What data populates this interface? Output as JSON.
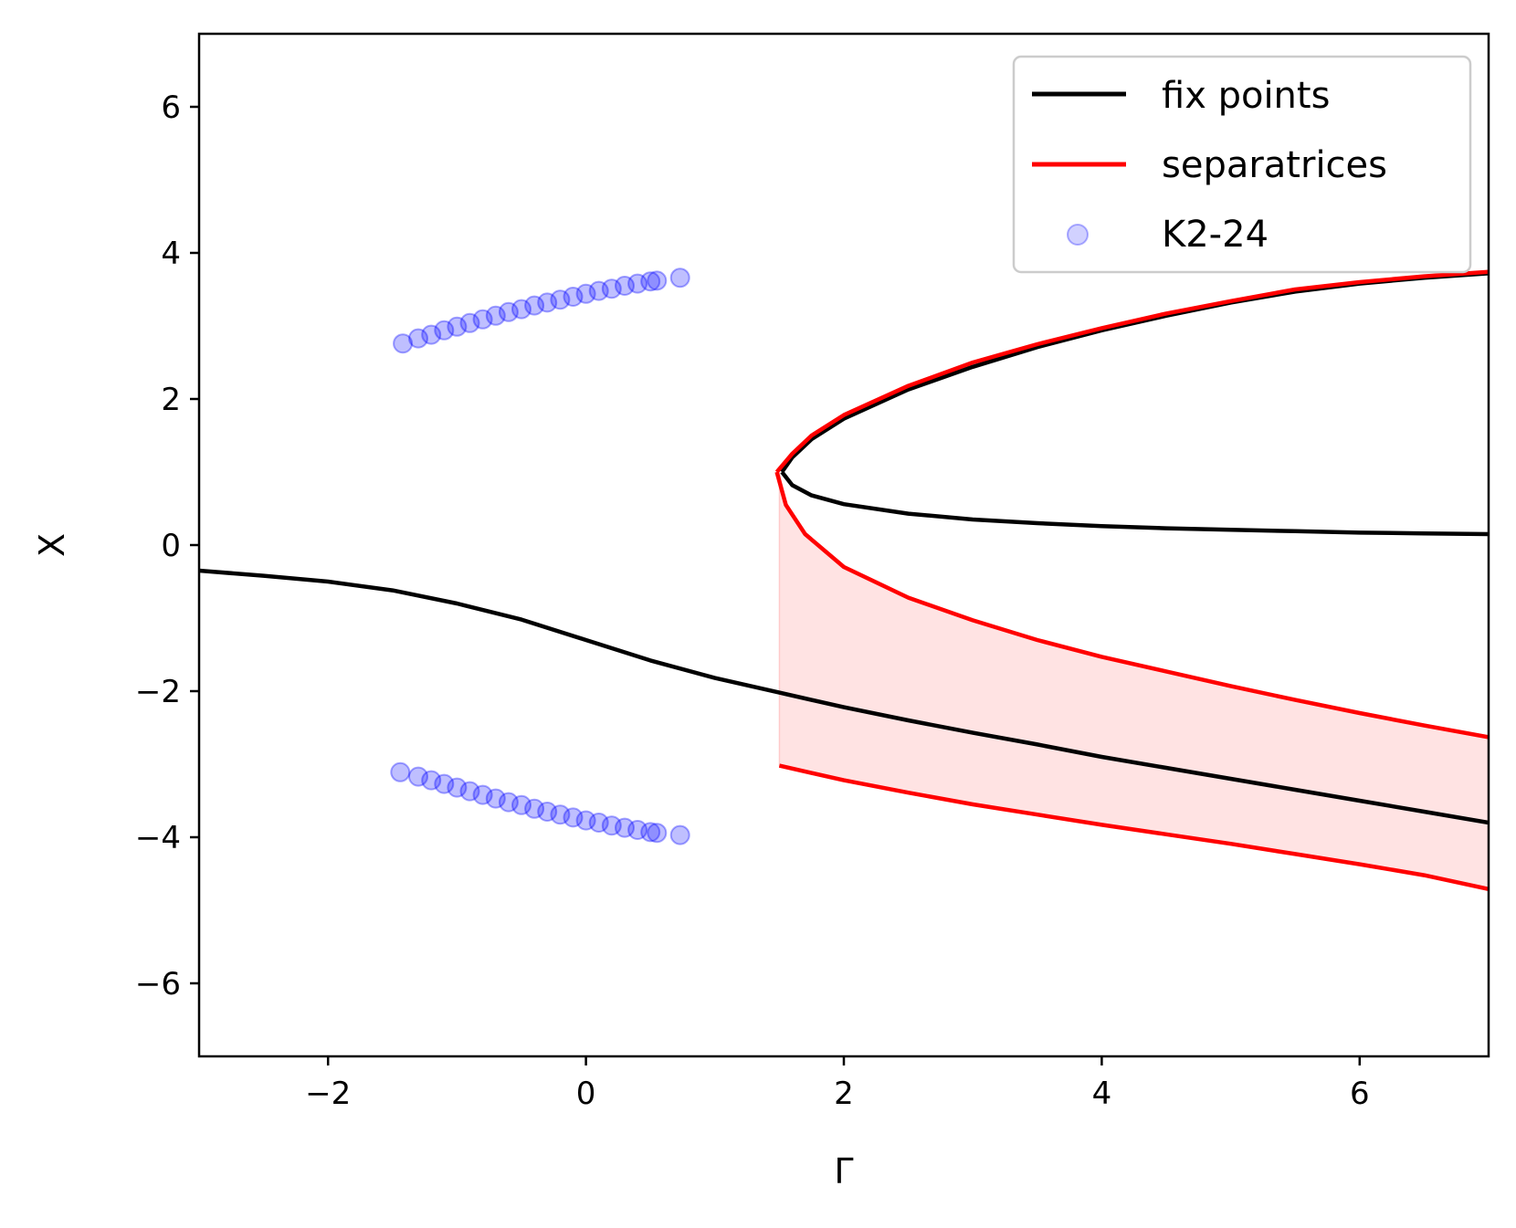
{
  "chart_data": {
    "type": "line",
    "xlabel": "Γ",
    "ylabel": "X",
    "xlim": [
      -3,
      7
    ],
    "ylim": [
      -7,
      7
    ],
    "xticks": [
      -2,
      0,
      2,
      4,
      6
    ],
    "yticks": [
      -6,
      -4,
      -2,
      0,
      2,
      4,
      6
    ],
    "xtick_labels": [
      "−2",
      "0",
      "2",
      "4",
      "6"
    ],
    "ytick_labels": [
      "−6",
      "−4",
      "−2",
      "0",
      "2",
      "4",
      "6"
    ],
    "grid": false,
    "legend_position": "top-right",
    "series": [
      {
        "name": "fix points",
        "kind": "line",
        "color": "#000000",
        "segments": [
          [
            [
              -3.0,
              -0.35
            ],
            [
              -2.5,
              -0.42
            ],
            [
              -2.0,
              -0.5
            ],
            [
              -1.5,
              -0.62
            ],
            [
              -1.0,
              -0.8
            ],
            [
              -0.5,
              -1.02
            ],
            [
              0.0,
              -1.3
            ],
            [
              0.5,
              -1.58
            ],
            [
              1.0,
              -1.82
            ],
            [
              1.5,
              -2.02
            ],
            [
              2.0,
              -2.22
            ],
            [
              2.5,
              -2.4
            ],
            [
              3.0,
              -2.57
            ],
            [
              3.5,
              -2.73
            ],
            [
              4.0,
              -2.9
            ],
            [
              4.5,
              -3.05
            ],
            [
              5.0,
              -3.2
            ],
            [
              5.5,
              -3.35
            ],
            [
              6.0,
              -3.5
            ],
            [
              6.5,
              -3.65
            ],
            [
              7.0,
              -3.8
            ]
          ],
          [
            [
              1.52,
              1.0
            ],
            [
              1.6,
              0.82
            ],
            [
              1.75,
              0.68
            ],
            [
              2.0,
              0.56
            ],
            [
              2.5,
              0.43
            ],
            [
              3.0,
              0.35
            ],
            [
              3.5,
              0.3
            ],
            [
              4.0,
              0.26
            ],
            [
              4.5,
              0.23
            ],
            [
              5.0,
              0.21
            ],
            [
              5.5,
              0.19
            ],
            [
              6.0,
              0.17
            ],
            [
              6.5,
              0.16
            ],
            [
              7.0,
              0.15
            ]
          ],
          [
            [
              1.52,
              1.0
            ],
            [
              1.6,
              1.2
            ],
            [
              1.75,
              1.45
            ],
            [
              2.0,
              1.73
            ],
            [
              2.5,
              2.13
            ],
            [
              3.0,
              2.44
            ],
            [
              3.5,
              2.71
            ],
            [
              4.0,
              2.94
            ],
            [
              4.5,
              3.14
            ],
            [
              5.0,
              3.32
            ],
            [
              5.5,
              3.47
            ],
            [
              6.0,
              3.58
            ],
            [
              6.5,
              3.66
            ],
            [
              7.0,
              3.72
            ]
          ]
        ]
      },
      {
        "name": "separatrices",
        "kind": "line",
        "color": "#ff0000",
        "segments": [
          [
            [
              1.48,
              1.0
            ],
            [
              1.6,
              1.25
            ],
            [
              1.75,
              1.5
            ],
            [
              2.0,
              1.78
            ],
            [
              2.5,
              2.18
            ],
            [
              3.0,
              2.5
            ],
            [
              3.5,
              2.75
            ],
            [
              4.0,
              2.97
            ],
            [
              4.5,
              3.17
            ],
            [
              5.0,
              3.34
            ],
            [
              5.5,
              3.5
            ],
            [
              6.0,
              3.6
            ],
            [
              6.5,
              3.68
            ],
            [
              7.0,
              3.74
            ]
          ],
          [
            [
              1.48,
              1.0
            ],
            [
              1.55,
              0.55
            ],
            [
              1.7,
              0.15
            ],
            [
              2.0,
              -0.3
            ],
            [
              2.5,
              -0.72
            ],
            [
              3.0,
              -1.03
            ],
            [
              3.5,
              -1.3
            ],
            [
              4.0,
              -1.53
            ],
            [
              4.5,
              -1.73
            ],
            [
              5.0,
              -1.93
            ],
            [
              5.5,
              -2.12
            ],
            [
              6.0,
              -2.3
            ],
            [
              6.5,
              -2.47
            ],
            [
              7.0,
              -2.63
            ]
          ],
          [
            [
              1.5,
              -3.02
            ],
            [
              2.0,
              -3.22
            ],
            [
              2.5,
              -3.39
            ],
            [
              3.0,
              -3.55
            ],
            [
              3.5,
              -3.69
            ],
            [
              4.0,
              -3.83
            ],
            [
              4.5,
              -3.96
            ],
            [
              5.0,
              -4.09
            ],
            [
              5.5,
              -4.23
            ],
            [
              6.0,
              -4.37
            ],
            [
              6.5,
              -4.52
            ],
            [
              7.0,
              -4.71
            ]
          ]
        ]
      },
      {
        "name": "K2-24",
        "kind": "scatter",
        "color": "#0000ff",
        "points": [
          [
            -1.42,
            2.76
          ],
          [
            -1.3,
            2.83
          ],
          [
            -1.2,
            2.88
          ],
          [
            -1.1,
            2.94
          ],
          [
            -1.0,
            2.99
          ],
          [
            -0.9,
            3.04
          ],
          [
            -0.8,
            3.09
          ],
          [
            -0.7,
            3.14
          ],
          [
            -0.6,
            3.19
          ],
          [
            -0.5,
            3.23
          ],
          [
            -0.4,
            3.28
          ],
          [
            -0.3,
            3.32
          ],
          [
            -0.2,
            3.36
          ],
          [
            -0.1,
            3.4
          ],
          [
            0.0,
            3.44
          ],
          [
            0.1,
            3.48
          ],
          [
            0.2,
            3.51
          ],
          [
            0.3,
            3.55
          ],
          [
            0.4,
            3.58
          ],
          [
            0.5,
            3.61
          ],
          [
            0.55,
            3.62
          ],
          [
            0.73,
            3.66
          ],
          [
            -1.44,
            -3.11
          ],
          [
            -1.3,
            -3.17
          ],
          [
            -1.2,
            -3.22
          ],
          [
            -1.1,
            -3.27
          ],
          [
            -1.0,
            -3.32
          ],
          [
            -0.9,
            -3.37
          ],
          [
            -0.8,
            -3.42
          ],
          [
            -0.7,
            -3.47
          ],
          [
            -0.6,
            -3.52
          ],
          [
            -0.5,
            -3.56
          ],
          [
            -0.4,
            -3.61
          ],
          [
            -0.3,
            -3.65
          ],
          [
            -0.2,
            -3.69
          ],
          [
            -0.1,
            -3.73
          ],
          [
            0.0,
            -3.77
          ],
          [
            0.1,
            -3.8
          ],
          [
            0.2,
            -3.84
          ],
          [
            0.3,
            -3.87
          ],
          [
            0.4,
            -3.9
          ],
          [
            0.5,
            -3.93
          ],
          [
            0.55,
            -3.94
          ],
          [
            0.73,
            -3.97
          ]
        ]
      }
    ],
    "shaded_region": {
      "color": "#ff0000",
      "x_start": 1.5,
      "x_end": 7.0,
      "upper": [
        [
          1.5,
          1.0
        ],
        [
          1.55,
          0.55
        ],
        [
          1.7,
          0.15
        ],
        [
          2.0,
          -0.3
        ],
        [
          2.5,
          -0.72
        ],
        [
          3.0,
          -1.03
        ],
        [
          3.5,
          -1.3
        ],
        [
          4.0,
          -1.53
        ],
        [
          4.5,
          -1.73
        ],
        [
          5.0,
          -1.93
        ],
        [
          5.5,
          -2.12
        ],
        [
          6.0,
          -2.3
        ],
        [
          6.5,
          -2.47
        ],
        [
          7.0,
          -2.63
        ]
      ],
      "lower": [
        [
          1.5,
          -3.02
        ],
        [
          2.0,
          -3.22
        ],
        [
          2.5,
          -3.39
        ],
        [
          3.0,
          -3.55
        ],
        [
          3.5,
          -3.69
        ],
        [
          4.0,
          -3.83
        ],
        [
          4.5,
          -3.96
        ],
        [
          5.0,
          -4.09
        ],
        [
          5.5,
          -4.23
        ],
        [
          6.0,
          -4.37
        ],
        [
          6.5,
          -4.52
        ],
        [
          7.0,
          -4.71
        ]
      ]
    }
  }
}
